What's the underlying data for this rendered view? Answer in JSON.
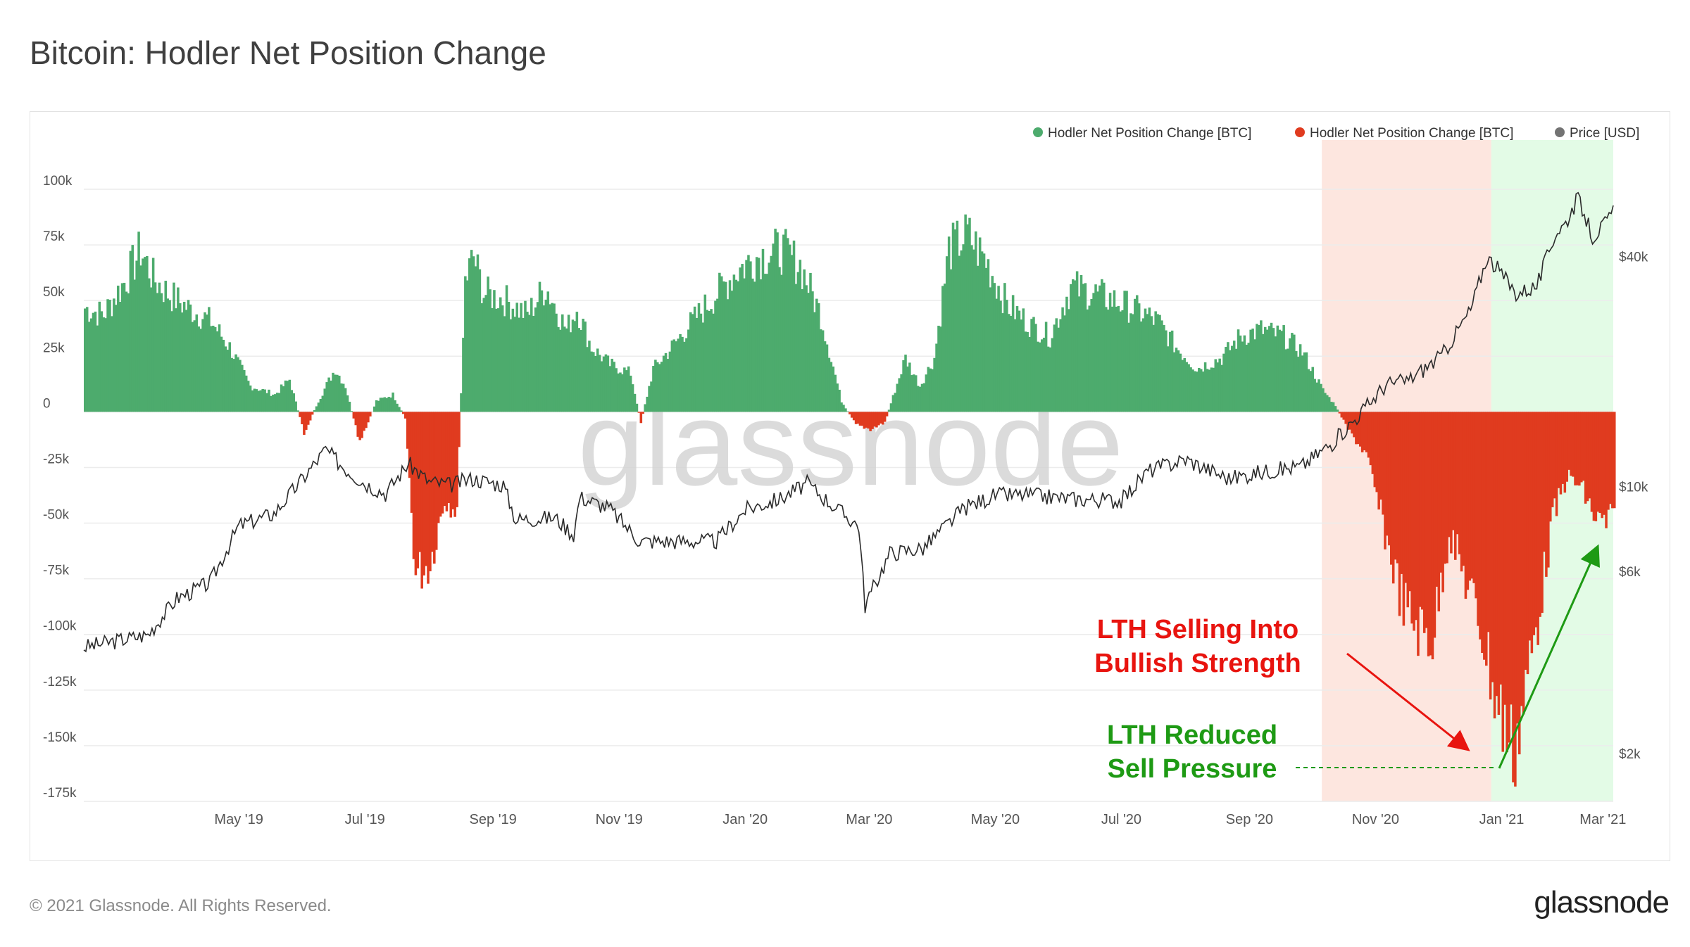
{
  "page": {
    "title": "Bitcoin: Hodler Net Position Change",
    "copyright": "© 2021 Glassnode. All Rights Reserved.",
    "logo_text": "glassnode",
    "watermark": "glassnode"
  },
  "colors": {
    "positive": "#4dab6d",
    "negative": "#e03b1f",
    "price": "#2b2b2b",
    "shade_red": "#fde6df",
    "shade_green": "#e3fbe6",
    "annotation_red": "#e8140f",
    "annotation_green": "#1e9a14",
    "watermark": "#d0d0d0"
  },
  "chart_data": {
    "type": "area",
    "title": "Bitcoin: Hodler Net Position Change",
    "legend": [
      {
        "name": "Hodler Net Position Change [BTC]",
        "color": "#4dab6d"
      },
      {
        "name": "Hodler Net Position Change [BTC]",
        "color": "#e03b1f"
      },
      {
        "name": "Price [USD]",
        "color": "#737373"
      }
    ],
    "legend_position": "top-right",
    "grid": true,
    "x_range": [
      "2019-03-01",
      "2021-03-10"
    ],
    "x_ticks": [
      "May '19",
      "Jul '19",
      "Sep '19",
      "Nov '19",
      "Jan '20",
      "Mar '20",
      "May '20",
      "Jul '20",
      "Sep '20",
      "Nov '20",
      "Jan '21",
      "Mar '21"
    ],
    "y_left": {
      "range": [
        -175000,
        100000
      ],
      "ticks": [
        100000,
        75000,
        50000,
        25000,
        0,
        -25000,
        -50000,
        -75000,
        -100000,
        -125000,
        -150000,
        -175000
      ],
      "tick_labels": [
        "100k",
        "75k",
        "50k",
        "25k",
        "0",
        "-25k",
        "-50k",
        "-75k",
        "-100k",
        "-125k",
        "-150k",
        "-175k"
      ]
    },
    "y_right": {
      "scale": "log",
      "ticks": [
        40000,
        10000,
        6000,
        2000
      ],
      "tick_labels": [
        "$40k",
        "$10k",
        "$6k",
        "$2k"
      ]
    },
    "net_position_change": {
      "dates": [
        "2019-03-01",
        "2019-03-10",
        "2019-03-20",
        "2019-03-28",
        "2019-04-03",
        "2019-04-10",
        "2019-04-20",
        "2019-05-01",
        "2019-05-10",
        "2019-05-20",
        "2019-06-01",
        "2019-06-08",
        "2019-06-15",
        "2019-06-22",
        "2019-06-30",
        "2019-07-05",
        "2019-07-12",
        "2019-07-20",
        "2019-07-28",
        "2019-08-03",
        "2019-08-08",
        "2019-08-15",
        "2019-08-22",
        "2019-08-28",
        "2019-09-01",
        "2019-09-05",
        "2019-09-10",
        "2019-09-20",
        "2019-10-01",
        "2019-10-10",
        "2019-10-20",
        "2019-10-25",
        "2019-11-01",
        "2019-11-10",
        "2019-11-20",
        "2019-11-25",
        "2019-12-01",
        "2019-12-10",
        "2019-12-20",
        "2020-01-01",
        "2020-01-10",
        "2020-01-20",
        "2020-02-01",
        "2020-02-10",
        "2020-02-20",
        "2020-03-01",
        "2020-03-08",
        "2020-03-15",
        "2020-03-22",
        "2020-04-01",
        "2020-04-08",
        "2020-04-15",
        "2020-04-22",
        "2020-05-01",
        "2020-05-10",
        "2020-05-20",
        "2020-06-01",
        "2020-06-10",
        "2020-06-20",
        "2020-07-01",
        "2020-07-10",
        "2020-07-20",
        "2020-08-01",
        "2020-08-10",
        "2020-08-20",
        "2020-09-01",
        "2020-09-10",
        "2020-09-20",
        "2020-10-01",
        "2020-10-10",
        "2020-10-20",
        "2020-10-26",
        "2020-11-01",
        "2020-11-10",
        "2020-11-20",
        "2020-11-28",
        "2020-12-05",
        "2020-12-12",
        "2020-12-20",
        "2020-12-27",
        "2021-01-03",
        "2021-01-08",
        "2021-01-12",
        "2021-01-16",
        "2021-01-20",
        "2021-01-25",
        "2021-02-01",
        "2021-02-08",
        "2021-02-15",
        "2021-02-22",
        "2021-03-01",
        "2021-03-06",
        "2021-03-10"
      ],
      "values": [
        48000,
        45000,
        60000,
        75000,
        62000,
        55000,
        48000,
        42000,
        30000,
        12000,
        8000,
        15000,
        -10000,
        5000,
        20000,
        12000,
        -15000,
        5000,
        8000,
        -3000,
        -75000,
        -70000,
        -40000,
        -45000,
        60000,
        72000,
        55000,
        52000,
        45000,
        58000,
        38000,
        48000,
        30000,
        22000,
        18000,
        -5000,
        20000,
        30000,
        42000,
        55000,
        65000,
        72000,
        75000,
        68000,
        45000,
        5000,
        -6000,
        -8000,
        -5000,
        25000,
        12000,
        25000,
        75000,
        82000,
        70000,
        50000,
        40000,
        35000,
        58000,
        55000,
        52000,
        48000,
        42000,
        30000,
        20000,
        25000,
        35000,
        38000,
        35000,
        28000,
        10000,
        3000,
        -8000,
        -20000,
        -60000,
        -90000,
        -100000,
        -105000,
        -55000,
        -75000,
        -95000,
        -115000,
        -135000,
        -145000,
        -158000,
        -135000,
        -95000,
        -50000,
        -30000,
        -35000,
        -50000,
        -52000,
        -48000
      ]
    },
    "price": {
      "dates": [
        "2019-03-01",
        "2019-04-01",
        "2019-04-15",
        "2019-05-01",
        "2019-05-15",
        "2019-06-01",
        "2019-06-15",
        "2019-06-26",
        "2019-07-05",
        "2019-07-15",
        "2019-07-25",
        "2019-08-05",
        "2019-08-15",
        "2019-08-25",
        "2019-09-05",
        "2019-09-20",
        "2019-09-26",
        "2019-10-15",
        "2019-10-24",
        "2019-10-27",
        "2019-11-10",
        "2019-11-25",
        "2019-12-15",
        "2020-01-01",
        "2020-01-15",
        "2020-02-01",
        "2020-02-14",
        "2020-03-01",
        "2020-03-10",
        "2020-03-13",
        "2020-03-25",
        "2020-04-10",
        "2020-04-30",
        "2020-05-15",
        "2020-06-01",
        "2020-06-20",
        "2020-07-15",
        "2020-07-28",
        "2020-08-15",
        "2020-09-05",
        "2020-09-20",
        "2020-10-10",
        "2020-10-25",
        "2020-11-05",
        "2020-11-20",
        "2020-12-01",
        "2020-12-17",
        "2020-12-31",
        "2021-01-08",
        "2021-01-15",
        "2021-01-22",
        "2021-02-01",
        "2021-02-10",
        "2021-02-15",
        "2021-02-21",
        "2021-02-28",
        "2021-03-05",
        "2021-03-10"
      ],
      "values": [
        3800,
        4100,
        5100,
        5600,
        7900,
        8500,
        10500,
        12500,
        11200,
        10200,
        9600,
        11500,
        10300,
        10100,
        10500,
        10100,
        8200,
        8300,
        7500,
        9400,
        8800,
        7200,
        7200,
        7200,
        8700,
        9300,
        10200,
        8600,
        7900,
        4900,
        6700,
        6900,
        8800,
        9500,
        9500,
        9300,
        9200,
        11000,
        11800,
        10500,
        10900,
        11300,
        13000,
        15000,
        18500,
        19000,
        22000,
        29000,
        40000,
        36000,
        32000,
        33500,
        46000,
        49000,
        57000,
        45000,
        48000,
        52000
      ]
    },
    "annotations": [
      {
        "text_lines": [
          "LTH Selling Into",
          "Bullish Strength"
        ],
        "color": "#e8140f"
      },
      {
        "text_lines": [
          "LTH Reduced",
          "Sell Pressure"
        ],
        "color": "#1e9a14"
      }
    ],
    "shaded_regions": [
      {
        "from": "2020-10-20",
        "to": "2021-01-10",
        "color": "#fde6df"
      },
      {
        "from": "2021-01-10",
        "to": "2021-03-10",
        "color": "#e3fbe6"
      }
    ]
  }
}
